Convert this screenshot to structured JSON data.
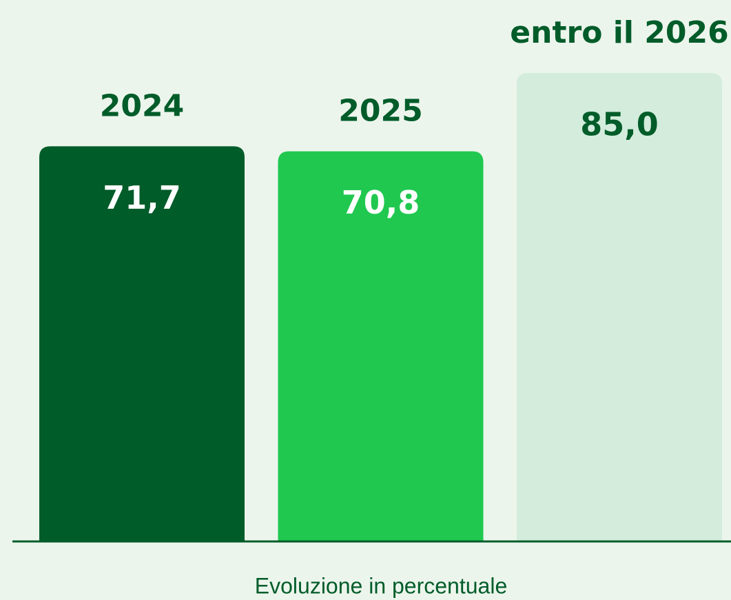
{
  "chart_data": {
    "type": "bar",
    "categories": [
      "2024",
      "2025",
      "entro il 2026"
    ],
    "values": [
      71.7,
      70.8,
      85.0
    ],
    "value_labels": [
      "71,7",
      "70,8",
      "85,0"
    ],
    "colors": [
      "#005c29",
      "#20c850",
      "#d3ecdc"
    ],
    "ylim": [
      0,
      100
    ],
    "x_label": "Evoluzione in percentuale"
  }
}
